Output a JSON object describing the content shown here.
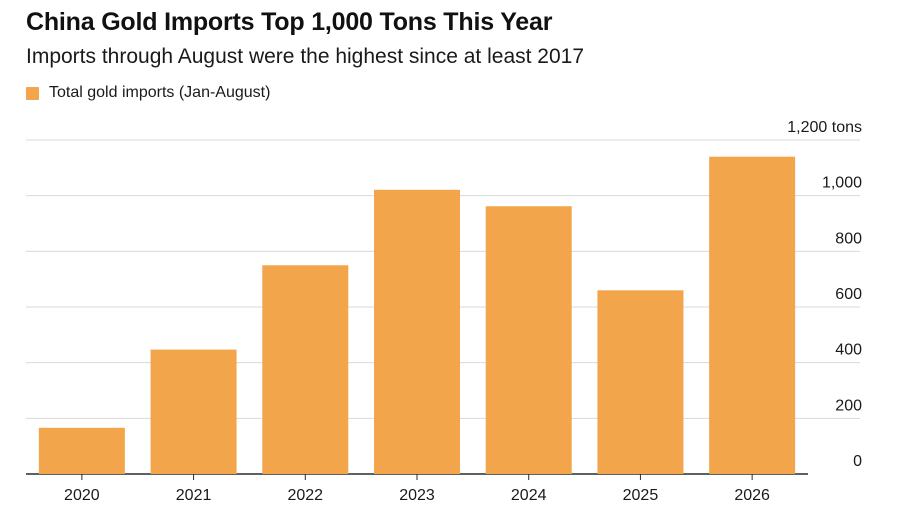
{
  "chart_data": {
    "type": "bar",
    "title": "China Gold Imports Top 1,000 Tons This Year",
    "subtitle": "Imports through August were the highest since at least 2017",
    "xlabel": "",
    "ylabel": "",
    "categories": [
      "2020",
      "2021",
      "2022",
      "2023",
      "2024",
      "2025",
      "2026"
    ],
    "series": [
      {
        "name": "Total gold imports (Jan-August)",
        "values": [
          166,
          447,
          750,
          1021,
          962,
          660,
          1140
        ],
        "color": "#F2A54A"
      }
    ],
    "ylim": [
      0,
      1200
    ],
    "yticks": [
      0,
      200,
      400,
      600,
      800,
      1000,
      1200
    ],
    "ytick_labels": [
      "0",
      "200",
      "400",
      "600",
      "800",
      "1,000",
      "1,200 tons"
    ],
    "y_axis_position": "right",
    "grid": true,
    "legend_position": "top-left"
  }
}
